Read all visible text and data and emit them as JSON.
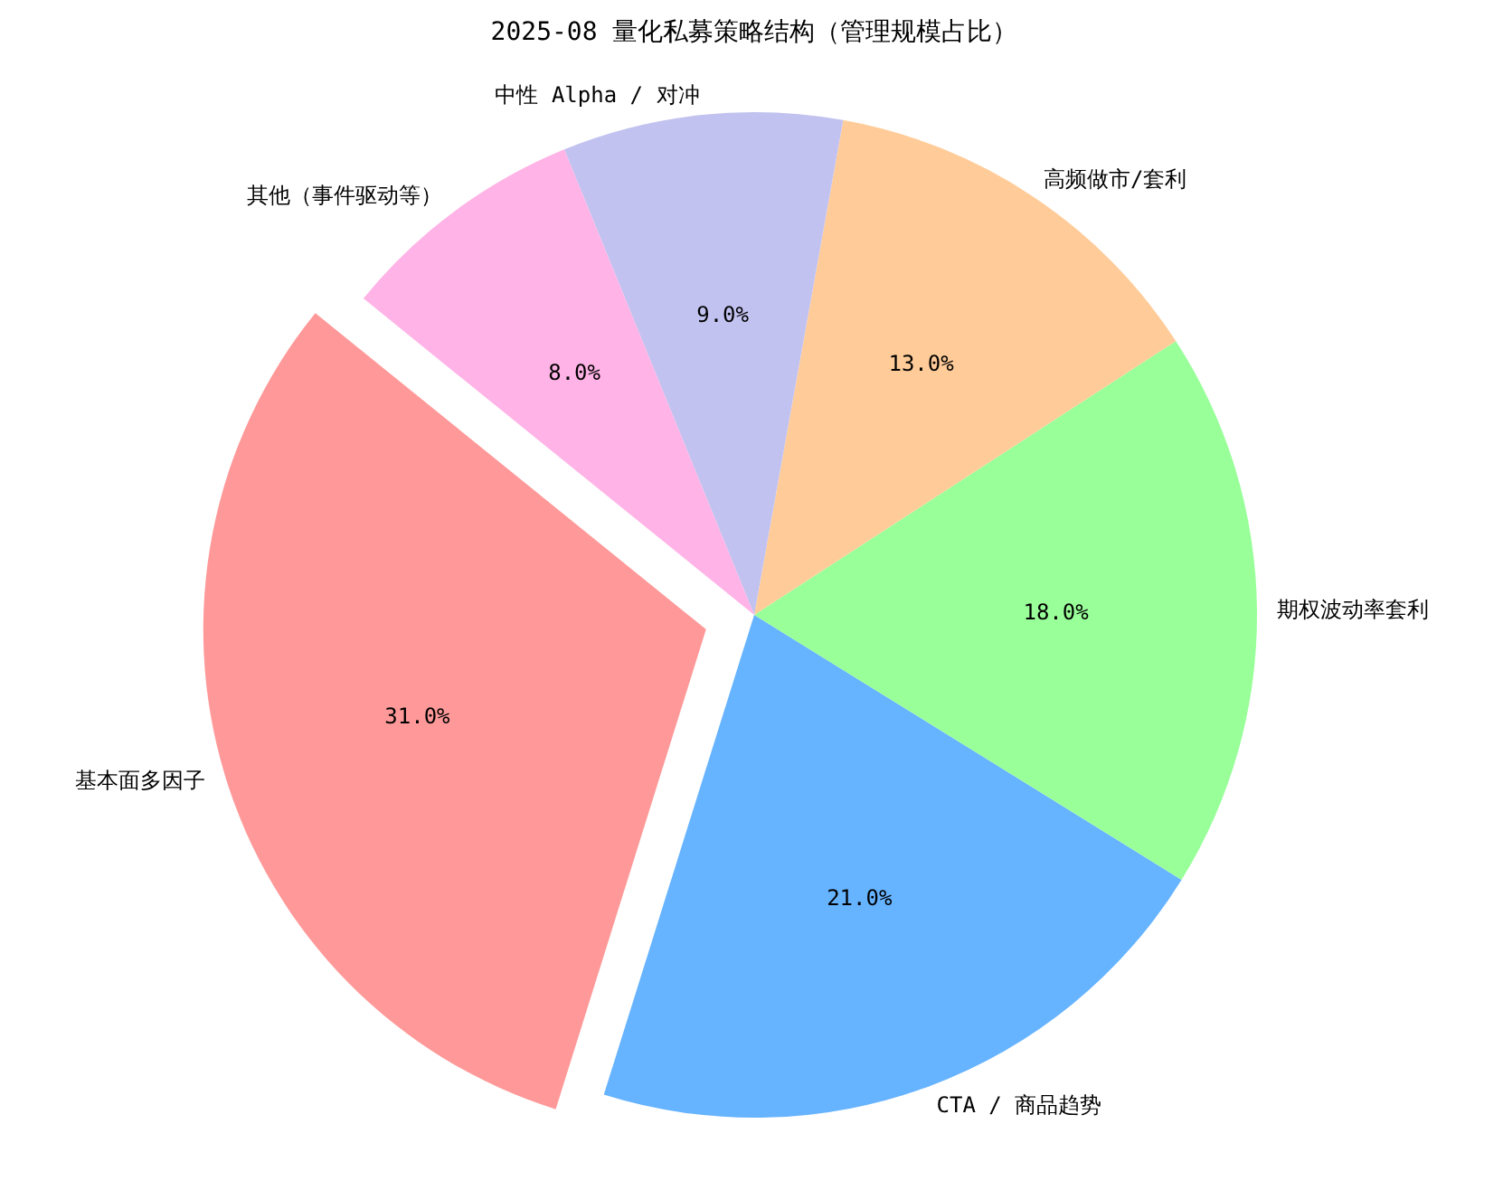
{
  "chart_data": {
    "type": "pie",
    "title": "2025-08 量化私募策略结构（管理规模占比）",
    "categories": [
      "基本面多因子",
      "CTA / 商品趋势",
      "期权波动率套利",
      "高频做市/套利",
      "中性 Alpha / 对冲",
      "其他（事件驱动等）"
    ],
    "values": [
      31,
      21,
      18,
      13,
      9,
      8
    ],
    "value_labels": [
      "31.0%",
      "21.0%",
      "18.0%",
      "13.0%",
      "9.0%",
      "8.0%"
    ],
    "colors": [
      "#ff9999",
      "#66b3ff",
      "#99ff99",
      "#ffcc99",
      "#c2c2f0",
      "#ffb3e6"
    ]
  }
}
